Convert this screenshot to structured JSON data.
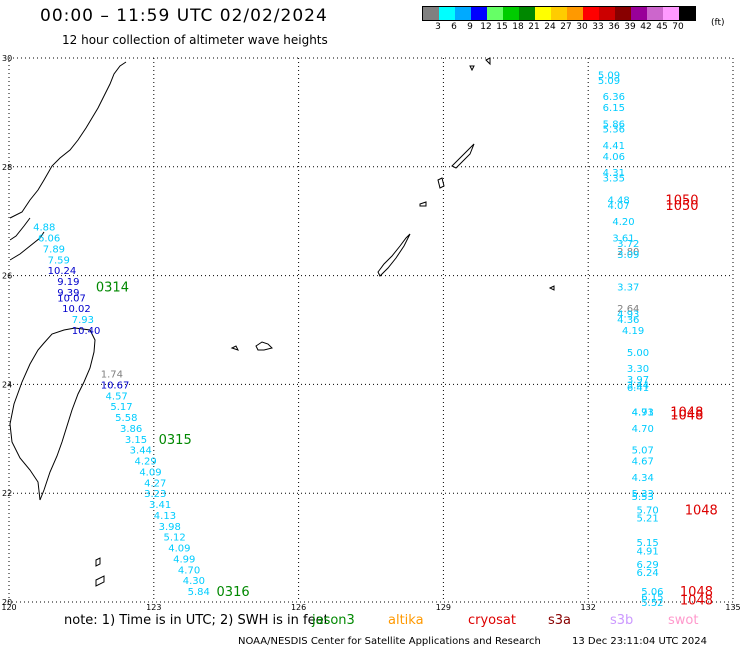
{
  "header": {
    "title": "00:00 – 11:59 UTC 02/02/2024",
    "subtitle": "12 hour collection of altimeter wave heights"
  },
  "legend": {
    "colors": [
      "#808080",
      "#00ffff",
      "#00aaff",
      "#0000ff",
      "#66ff66",
      "#00cc00",
      "#008800",
      "#ffff00",
      "#ffcc00",
      "#ff9900",
      "#ff0000",
      "#cc0000",
      "#880000",
      "#990099",
      "#cc66cc",
      "#ff99ff",
      "#000000"
    ],
    "labels": [
      "3",
      "6",
      "9",
      "12",
      "15",
      "18",
      "21",
      "24",
      "27",
      "30",
      "33",
      "36",
      "39",
      "42",
      "45",
      "70"
    ],
    "unit": "(ft)"
  },
  "map": {
    "lon_range": [
      120,
      135
    ],
    "lat_range": [
      20,
      30
    ],
    "lon_ticks": [
      "120",
      "123",
      "126",
      "129",
      "132",
      "135"
    ],
    "lat_ticks": [
      "30",
      "28",
      "26",
      "24",
      "22",
      "20"
    ],
    "land_color": "#000000",
    "grid_style": "dotted"
  },
  "wave_labels": [
    {
      "lon": 120.5,
      "lat": 26.9,
      "text": "4.88",
      "color": "#00ccff"
    },
    {
      "lon": 120.6,
      "lat": 26.7,
      "text": "6.06",
      "color": "#00ccff"
    },
    {
      "lon": 120.7,
      "lat": 26.5,
      "text": "7.89",
      "color": "#00ccff"
    },
    {
      "lon": 120.8,
      "lat": 26.3,
      "text": "7.59",
      "color": "#00ccff"
    },
    {
      "lon": 120.8,
      "lat": 26.1,
      "text": "10.24",
      "color": "#0000cc"
    },
    {
      "lon": 121.0,
      "lat": 25.9,
      "text": "9.19",
      "color": "#0000cc"
    },
    {
      "lon": 121.0,
      "lat": 25.7,
      "text": "9.39",
      "color": "#0000cc"
    },
    {
      "lon": 121.0,
      "lat": 25.6,
      "text": "10.07",
      "color": "#0000cc"
    },
    {
      "lon": 121.1,
      "lat": 25.4,
      "text": "10.02",
      "color": "#0000cc"
    },
    {
      "lon": 121.3,
      "lat": 25.2,
      "text": "7.93",
      "color": "#00ccff"
    },
    {
      "lon": 121.3,
      "lat": 25.0,
      "text": "10.40",
      "color": "#0000cc"
    },
    {
      "lon": 121.9,
      "lat": 24.2,
      "text": "1.74",
      "color": "#808080"
    },
    {
      "lon": 121.9,
      "lat": 24.0,
      "text": "10.67",
      "color": "#0000cc"
    },
    {
      "lon": 122.0,
      "lat": 23.8,
      "text": "4.57",
      "color": "#00ccff"
    },
    {
      "lon": 122.1,
      "lat": 23.6,
      "text": "5.17",
      "color": "#00ccff"
    },
    {
      "lon": 122.2,
      "lat": 23.4,
      "text": "5.58",
      "color": "#00ccff"
    },
    {
      "lon": 122.3,
      "lat": 23.2,
      "text": "3.86",
      "color": "#00ccff"
    },
    {
      "lon": 122.4,
      "lat": 23.0,
      "text": "3.15",
      "color": "#00ccff"
    },
    {
      "lon": 122.5,
      "lat": 22.8,
      "text": "3.44",
      "color": "#00ccff"
    },
    {
      "lon": 122.6,
      "lat": 22.6,
      "text": "4.29",
      "color": "#00ccff"
    },
    {
      "lon": 122.7,
      "lat": 22.4,
      "text": "4.09",
      "color": "#00ccff"
    },
    {
      "lon": 122.8,
      "lat": 22.2,
      "text": "4.27",
      "color": "#00ccff"
    },
    {
      "lon": 122.8,
      "lat": 22.0,
      "text": "3.23",
      "color": "#00ccff"
    },
    {
      "lon": 122.9,
      "lat": 21.8,
      "text": "3.41",
      "color": "#00ccff"
    },
    {
      "lon": 123.0,
      "lat": 21.6,
      "text": "4.13",
      "color": "#00ccff"
    },
    {
      "lon": 123.1,
      "lat": 21.4,
      "text": "3.98",
      "color": "#00ccff"
    },
    {
      "lon": 123.2,
      "lat": 21.2,
      "text": "5.12",
      "color": "#00ccff"
    },
    {
      "lon": 123.3,
      "lat": 21.0,
      "text": "4.09",
      "color": "#00ccff"
    },
    {
      "lon": 123.4,
      "lat": 20.8,
      "text": "4.99",
      "color": "#00ccff"
    },
    {
      "lon": 123.5,
      "lat": 20.6,
      "text": "4.70",
      "color": "#00ccff"
    },
    {
      "lon": 123.6,
      "lat": 20.4,
      "text": "4.30",
      "color": "#00ccff"
    },
    {
      "lon": 123.7,
      "lat": 20.2,
      "text": "5.84",
      "color": "#00ccff"
    },
    {
      "lon": 132.2,
      "lat": 29.7,
      "text": "5.09",
      "color": "#00ccff"
    },
    {
      "lon": 132.2,
      "lat": 29.6,
      "text": "5.09",
      "color": "#00ccff"
    },
    {
      "lon": 132.3,
      "lat": 29.3,
      "text": "6.36",
      "color": "#00ccff"
    },
    {
      "lon": 132.3,
      "lat": 29.1,
      "text": "6.15",
      "color": "#00ccff"
    },
    {
      "lon": 132.3,
      "lat": 28.8,
      "text": "5.86",
      "color": "#00ccff"
    },
    {
      "lon": 132.3,
      "lat": 28.7,
      "text": "5.36",
      "color": "#00ccff"
    },
    {
      "lon": 132.3,
      "lat": 28.4,
      "text": "4.41",
      "color": "#00ccff"
    },
    {
      "lon": 132.3,
      "lat": 28.2,
      "text": "4.06",
      "color": "#00ccff"
    },
    {
      "lon": 132.3,
      "lat": 27.9,
      "text": "4.31",
      "color": "#00ccff"
    },
    {
      "lon": 132.3,
      "lat": 27.8,
      "text": "3.35",
      "color": "#00ccff"
    },
    {
      "lon": 132.4,
      "lat": 27.4,
      "text": "4.48",
      "color": "#00ccff"
    },
    {
      "lon": 132.4,
      "lat": 27.3,
      "text": "4.07",
      "color": "#00ccff"
    },
    {
      "lon": 132.5,
      "lat": 27.0,
      "text": "4.20",
      "color": "#00ccff"
    },
    {
      "lon": 132.5,
      "lat": 26.7,
      "text": "3.61",
      "color": "#00ccff"
    },
    {
      "lon": 132.6,
      "lat": 26.6,
      "text": "3.72",
      "color": "#00ccff"
    },
    {
      "lon": 132.6,
      "lat": 26.45,
      "text": "2.80",
      "color": "#808080"
    },
    {
      "lon": 132.6,
      "lat": 26.4,
      "text": "3.09",
      "color": "#00ccff"
    },
    {
      "lon": 132.6,
      "lat": 25.8,
      "text": "3.37",
      "color": "#00ccff"
    },
    {
      "lon": 132.6,
      "lat": 25.4,
      "text": "2.64",
      "color": "#808080"
    },
    {
      "lon": 132.6,
      "lat": 25.3,
      "text": "4.93",
      "color": "#00ccff"
    },
    {
      "lon": 132.6,
      "lat": 25.2,
      "text": "4.36",
      "color": "#00ccff"
    },
    {
      "lon": 132.7,
      "lat": 25.0,
      "text": "4.19",
      "color": "#00ccff"
    },
    {
      "lon": 132.8,
      "lat": 24.6,
      "text": "5.00",
      "color": "#00ccff"
    },
    {
      "lon": 132.8,
      "lat": 24.3,
      "text": "3.30",
      "color": "#00ccff"
    },
    {
      "lon": 132.8,
      "lat": 24.1,
      "text": "3.97",
      "color": "#00ccff"
    },
    {
      "lon": 132.8,
      "lat": 24.0,
      "text": "3.44",
      "color": "#00ccff"
    },
    {
      "lon": 132.8,
      "lat": 23.95,
      "text": "6.41",
      "color": "#00ccff"
    },
    {
      "lon": 132.9,
      "lat": 23.5,
      "text": "4.71",
      "color": "#00ccff"
    },
    {
      "lon": 132.9,
      "lat": 23.5,
      "text": "4.93",
      "color": "#00ccff"
    },
    {
      "lon": 132.9,
      "lat": 23.2,
      "text": "4.70",
      "color": "#00ccff"
    },
    {
      "lon": 132.9,
      "lat": 22.8,
      "text": "5.07",
      "color": "#00ccff"
    },
    {
      "lon": 132.9,
      "lat": 22.6,
      "text": "4.67",
      "color": "#00ccff"
    },
    {
      "lon": 132.9,
      "lat": 22.3,
      "text": "4.34",
      "color": "#00ccff"
    },
    {
      "lon": 132.9,
      "lat": 22.0,
      "text": "5.33",
      "color": "#00ccff"
    },
    {
      "lon": 132.9,
      "lat": 21.95,
      "text": "5.53",
      "color": "#00ccff"
    },
    {
      "lon": 133.0,
      "lat": 21.7,
      "text": "5.70",
      "color": "#00ccff"
    },
    {
      "lon": 133.0,
      "lat": 21.55,
      "text": "5.21",
      "color": "#00ccff"
    },
    {
      "lon": 133.0,
      "lat": 21.1,
      "text": "5.15",
      "color": "#00ccff"
    },
    {
      "lon": 133.0,
      "lat": 20.95,
      "text": "4.91",
      "color": "#00ccff"
    },
    {
      "lon": 133.0,
      "lat": 20.7,
      "text": "6.29",
      "color": "#00ccff"
    },
    {
      "lon": 133.0,
      "lat": 20.55,
      "text": "6.24",
      "color": "#00ccff"
    },
    {
      "lon": 133.1,
      "lat": 20.2,
      "text": "5.06",
      "color": "#00ccff"
    },
    {
      "lon": 133.1,
      "lat": 20.1,
      "text": "6.15",
      "color": "#00ccff"
    },
    {
      "lon": 133.1,
      "lat": 20.0,
      "text": "5.52",
      "color": "#00ccff"
    }
  ],
  "time_labels": [
    {
      "lon": 121.8,
      "lat": 25.8,
      "text": "0314",
      "color": "#008800"
    },
    {
      "lon": 123.1,
      "lat": 23.0,
      "text": "0315",
      "color": "#008800"
    },
    {
      "lon": 124.3,
      "lat": 20.2,
      "text": "0316",
      "color": "#008800"
    },
    {
      "lon": 133.6,
      "lat": 27.4,
      "text": "1050",
      "color": "#dd0000"
    },
    {
      "lon": 133.6,
      "lat": 27.3,
      "text": "1050",
      "color": "#dd0000"
    },
    {
      "lon": 133.7,
      "lat": 23.5,
      "text": "1048",
      "color": "#dd0000"
    },
    {
      "lon": 133.7,
      "lat": 23.45,
      "text": "1048",
      "color": "#dd0000"
    },
    {
      "lon": 134.0,
      "lat": 21.7,
      "text": "1048",
      "color": "#dd0000"
    },
    {
      "lon": 133.9,
      "lat": 20.2,
      "text": "1048",
      "color": "#dd0000"
    },
    {
      "lon": 133.9,
      "lat": 20.05,
      "text": "1048",
      "color": "#dd0000"
    }
  ],
  "notes": {
    "text": "note:  1) Time is in UTC;  2) SWH is in feet",
    "satellites": [
      {
        "name": "jason3",
        "color": "#008800",
        "left": 312
      },
      {
        "name": "altika",
        "color": "#ff9900",
        "left": 388
      },
      {
        "name": "cryosat",
        "color": "#dd0000",
        "left": 468
      },
      {
        "name": "s3a",
        "color": "#880000",
        "left": 548
      },
      {
        "name": "s3b",
        "color": "#cc99ff",
        "left": 610
      },
      {
        "name": "swot",
        "color": "#ff99cc",
        "left": 668
      }
    ]
  },
  "footer": {
    "credit": "NOAA/NESDIS Center for Satellite Applications and Research",
    "generated": "13 Dec 23:11:04 UTC 2024"
  }
}
